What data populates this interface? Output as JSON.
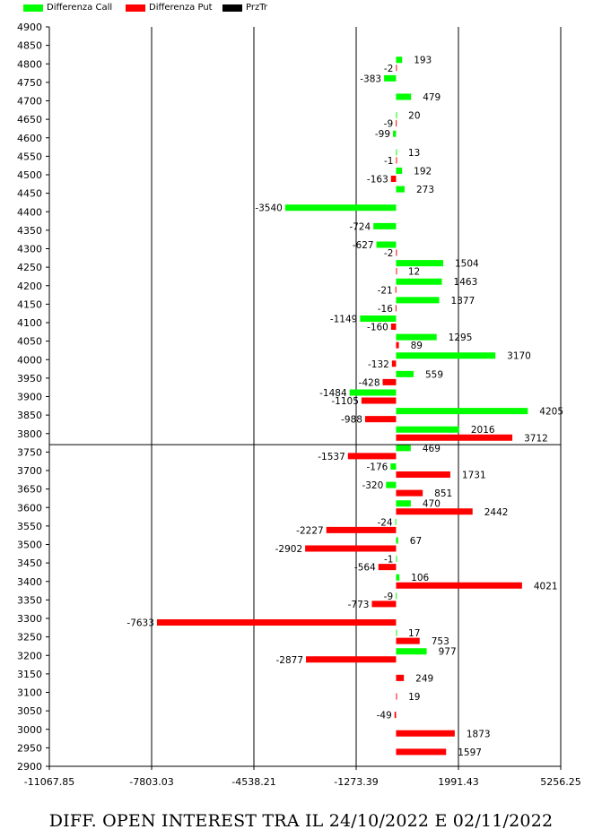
{
  "chart_data": {
    "type": "bar",
    "orientation": "horizontal",
    "title": "DIFF. OPEN INTEREST TRA IL 24/10/2022 E 02/11/2022",
    "xlim": [
      -11067.85,
      5256.25
    ],
    "x_ticks": [
      "-11067.85",
      "-7803.03",
      "-4538.21",
      "-1273.39",
      "1991.43",
      "5256.25"
    ],
    "y_ticks": [
      4900,
      4850,
      4800,
      4750,
      4700,
      4650,
      4600,
      4550,
      4500,
      4450,
      4400,
      4350,
      4300,
      4250,
      4200,
      4150,
      4100,
      4050,
      4000,
      3950,
      3900,
      3850,
      3800,
      3750,
      3700,
      3650,
      3600,
      3550,
      3500,
      3450,
      3400,
      3350,
      3300,
      3250,
      3200,
      3150,
      3100,
      3050,
      3000,
      2950,
      2900
    ],
    "series": [
      {
        "name": "Differenza Call",
        "color": "#00ff00",
        "points": [
          {
            "strike": 4800,
            "value": 193
          },
          {
            "strike": 4750,
            "value": -383
          },
          {
            "strike": 4700,
            "value": 479
          },
          {
            "strike": 4650,
            "value": 20
          },
          {
            "strike": 4600,
            "value": -99
          },
          {
            "strike": 4550,
            "value": 13
          },
          {
            "strike": 4500,
            "value": 192
          },
          {
            "strike": 4450,
            "value": 273
          },
          {
            "strike": 4400,
            "value": -3540
          },
          {
            "strike": 4350,
            "value": -724
          },
          {
            "strike": 4300,
            "value": -627
          },
          {
            "strike": 4250,
            "value": 1504
          },
          {
            "strike": 4200,
            "value": 1463
          },
          {
            "strike": 4150,
            "value": 1377
          },
          {
            "strike": 4100,
            "value": -1149
          },
          {
            "strike": 4050,
            "value": 1295
          },
          {
            "strike": 4000,
            "value": 3170
          },
          {
            "strike": 3950,
            "value": 559
          },
          {
            "strike": 3900,
            "value": -1484
          },
          {
            "strike": 3850,
            "value": 4205
          },
          {
            "strike": 3800,
            "value": 2016
          },
          {
            "strike": 3750,
            "value": 469
          },
          {
            "strike": 3700,
            "value": -176
          },
          {
            "strike": 3650,
            "value": -320
          },
          {
            "strike": 3600,
            "value": 470
          },
          {
            "strike": 3550,
            "value": -24
          },
          {
            "strike": 3500,
            "value": 67
          },
          {
            "strike": 3450,
            "value": -1
          },
          {
            "strike": 3400,
            "value": 106
          },
          {
            "strike": 3350,
            "value": -9
          },
          {
            "strike": 3250,
            "value": 17
          },
          {
            "strike": 3200,
            "value": 977
          }
        ]
      },
      {
        "name": "Differenza Put",
        "color": "#ff0000",
        "points": [
          {
            "strike": 4800,
            "value": -2
          },
          {
            "strike": 4650,
            "value": -9
          },
          {
            "strike": 4550,
            "value": -1
          },
          {
            "strike": 4500,
            "value": -163
          },
          {
            "strike": 4300,
            "value": -2
          },
          {
            "strike": 4250,
            "value": 12
          },
          {
            "strike": 4200,
            "value": -21
          },
          {
            "strike": 4150,
            "value": -16
          },
          {
            "strike": 4100,
            "value": -160
          },
          {
            "strike": 4050,
            "value": 89
          },
          {
            "strike": 4000,
            "value": -132
          },
          {
            "strike": 3950,
            "value": -428
          },
          {
            "strike": 3900,
            "value": -1105
          },
          {
            "strike": 3850,
            "value": -988
          },
          {
            "strike": 3800,
            "value": 3712
          },
          {
            "strike": 3750,
            "value": -1537
          },
          {
            "strike": 3700,
            "value": 1731
          },
          {
            "strike": 3650,
            "value": 851
          },
          {
            "strike": 3600,
            "value": 2442
          },
          {
            "strike": 3550,
            "value": -2227
          },
          {
            "strike": 3500,
            "value": -2902
          },
          {
            "strike": 3450,
            "value": -564
          },
          {
            "strike": 3400,
            "value": 4021
          },
          {
            "strike": 3350,
            "value": -773
          },
          {
            "strike": 3300,
            "value": -7633
          },
          {
            "strike": 3250,
            "value": 753
          },
          {
            "strike": 3200,
            "value": -2877
          },
          {
            "strike": 3150,
            "value": 249
          },
          {
            "strike": 3100,
            "value": 19
          },
          {
            "strike": 3050,
            "value": -49
          },
          {
            "strike": 3000,
            "value": 1873
          },
          {
            "strike": 2950,
            "value": 1597
          }
        ]
      },
      {
        "name": "PrzTr",
        "color": "#000000",
        "price_level": 3770
      }
    ],
    "grid": "vertical lines at x ticks",
    "legend": "top-left"
  }
}
